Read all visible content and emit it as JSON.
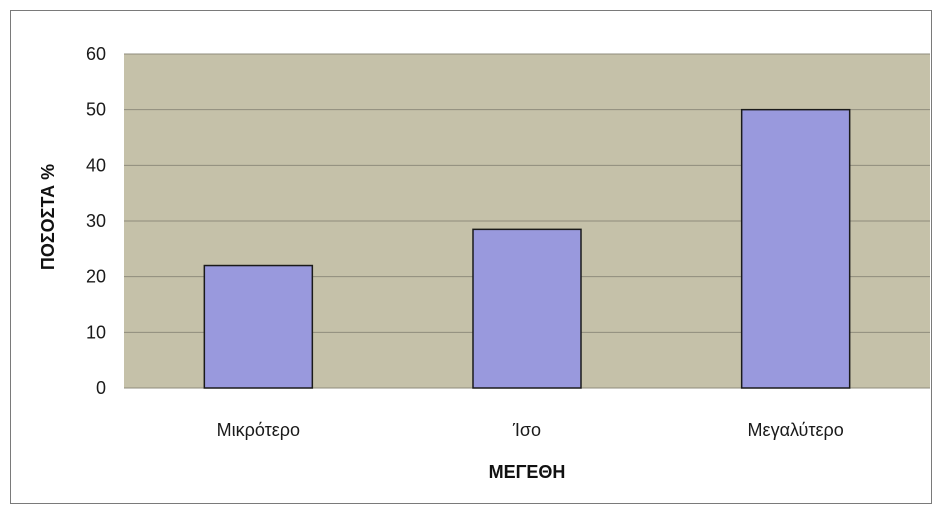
{
  "chart_data": {
    "type": "bar",
    "categories": [
      "Μικρότερο",
      "Ίσο",
      "Μεγαλύτερο"
    ],
    "values": [
      22,
      28.5,
      50
    ],
    "title": "",
    "xlabel": "ΜΕΓΕΘΗ",
    "ylabel": "ΠΟΣΟΣΤΑ %",
    "ylim": [
      0,
      60
    ],
    "yticks": [
      0,
      10,
      20,
      30,
      40,
      50,
      60
    ],
    "grid": true,
    "legend": "none",
    "colors": {
      "bar_fill": "#9999dd",
      "bar_edge": "#1a1a1a",
      "plot_background": "#c5c1a9",
      "gridline": "#8f8c7c"
    }
  }
}
